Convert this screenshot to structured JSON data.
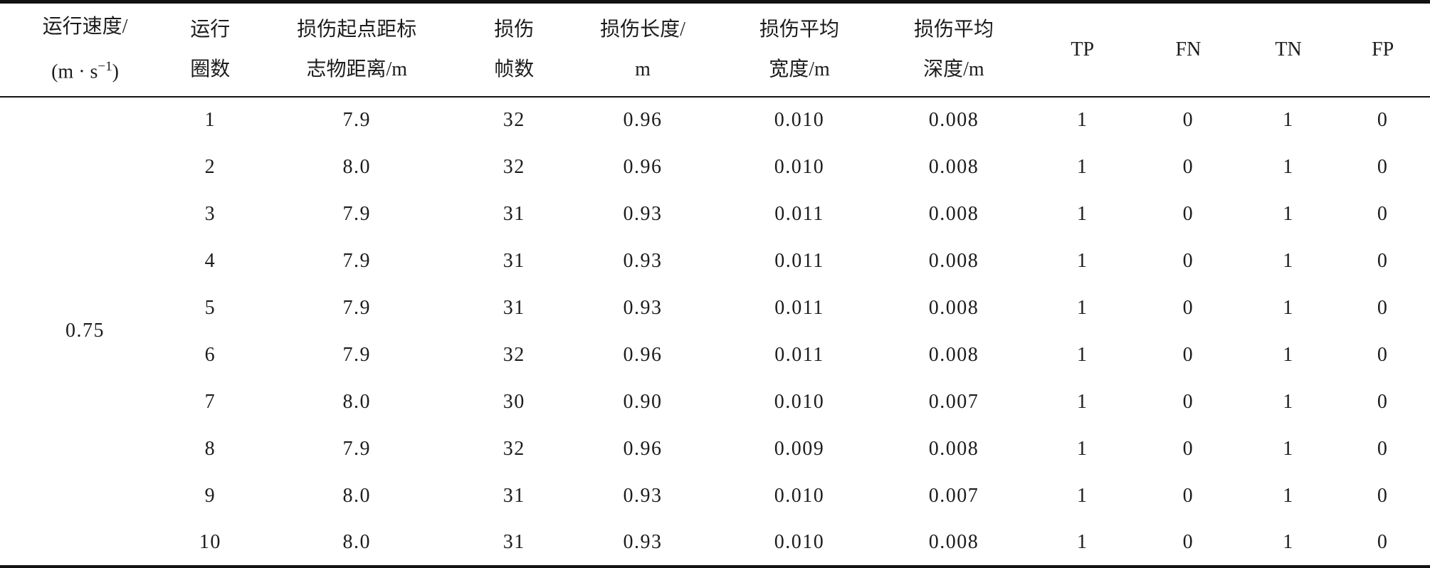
{
  "header": {
    "speed_line1": "运行速度/",
    "speed_unit_open": "(m · s",
    "speed_unit_sup": "−1",
    "speed_unit_close": ")",
    "circles_line1": "运行",
    "circles_line2": "圈数",
    "distance_line1": "损伤起点距标",
    "distance_line2": "志物距离/m",
    "frames_line1": "损伤",
    "frames_line2": "帧数",
    "length_line1": "损伤长度/",
    "length_line2": "m",
    "width_line1": "损伤平均",
    "width_line2": "宽度/m",
    "depth_line1": "损伤平均",
    "depth_line2": "深度/m",
    "tp": "TP",
    "fn": "FN",
    "tn": "TN",
    "fp": "FP"
  },
  "speed_value": "0.75",
  "rows": [
    {
      "circle": "1",
      "distance": "7.9",
      "frames": "32",
      "length": "0.96",
      "width": "0.010",
      "depth": "0.008",
      "tp": "1",
      "fn": "0",
      "tn": "1",
      "fp": "0"
    },
    {
      "circle": "2",
      "distance": "8.0",
      "frames": "32",
      "length": "0.96",
      "width": "0.010",
      "depth": "0.008",
      "tp": "1",
      "fn": "0",
      "tn": "1",
      "fp": "0"
    },
    {
      "circle": "3",
      "distance": "7.9",
      "frames": "31",
      "length": "0.93",
      "width": "0.011",
      "depth": "0.008",
      "tp": "1",
      "fn": "0",
      "tn": "1",
      "fp": "0"
    },
    {
      "circle": "4",
      "distance": "7.9",
      "frames": "31",
      "length": "0.93",
      "width": "0.011",
      "depth": "0.008",
      "tp": "1",
      "fn": "0",
      "tn": "1",
      "fp": "0"
    },
    {
      "circle": "5",
      "distance": "7.9",
      "frames": "31",
      "length": "0.93",
      "width": "0.011",
      "depth": "0.008",
      "tp": "1",
      "fn": "0",
      "tn": "1",
      "fp": "0"
    },
    {
      "circle": "6",
      "distance": "7.9",
      "frames": "32",
      "length": "0.96",
      "width": "0.011",
      "depth": "0.008",
      "tp": "1",
      "fn": "0",
      "tn": "1",
      "fp": "0"
    },
    {
      "circle": "7",
      "distance": "8.0",
      "frames": "30",
      "length": "0.90",
      "width": "0.010",
      "depth": "0.007",
      "tp": "1",
      "fn": "0",
      "tn": "1",
      "fp": "0"
    },
    {
      "circle": "8",
      "distance": "7.9",
      "frames": "32",
      "length": "0.96",
      "width": "0.009",
      "depth": "0.008",
      "tp": "1",
      "fn": "0",
      "tn": "1",
      "fp": "0"
    },
    {
      "circle": "9",
      "distance": "8.0",
      "frames": "31",
      "length": "0.93",
      "width": "0.010",
      "depth": "0.007",
      "tp": "1",
      "fn": "0",
      "tn": "1",
      "fp": "0"
    },
    {
      "circle": "10",
      "distance": "8.0",
      "frames": "31",
      "length": "0.93",
      "width": "0.010",
      "depth": "0.008",
      "tp": "1",
      "fn": "0",
      "tn": "1",
      "fp": "0"
    }
  ]
}
